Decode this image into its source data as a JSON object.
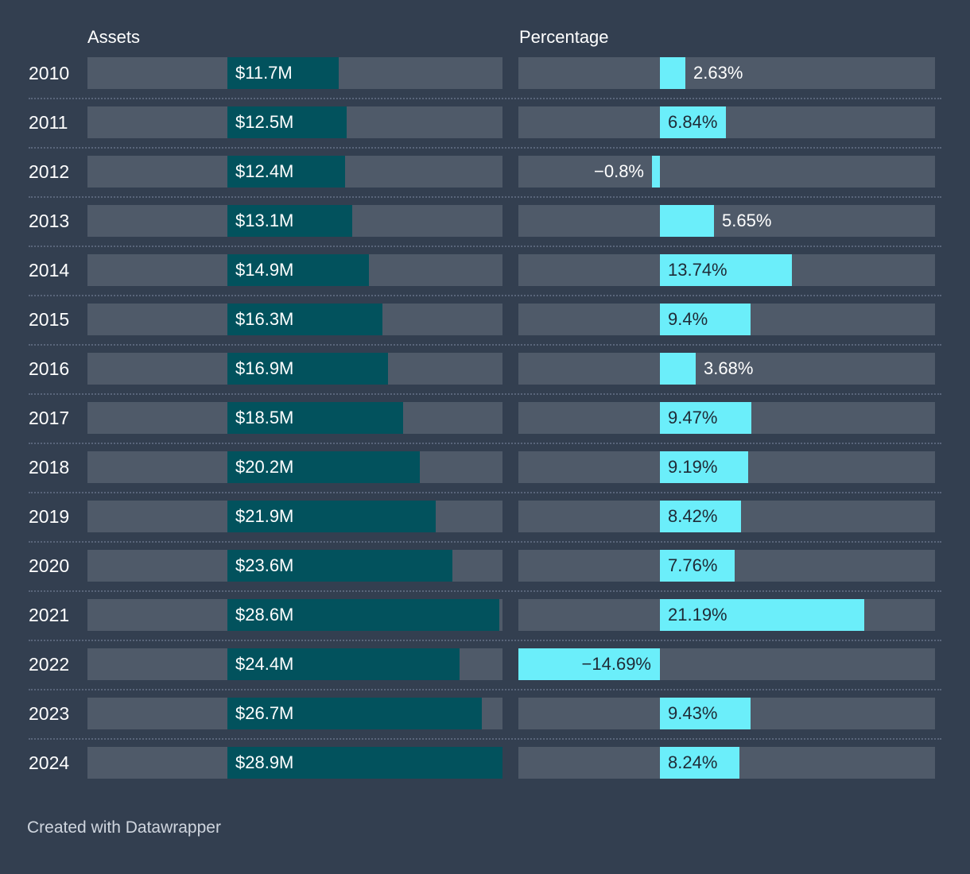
{
  "chart_data": {
    "type": "bar",
    "title": "",
    "columns": [
      "Assets",
      "Percentage"
    ],
    "categories": [
      "2010",
      "2011",
      "2012",
      "2013",
      "2014",
      "2015",
      "2016",
      "2017",
      "2018",
      "2019",
      "2020",
      "2021",
      "2022",
      "2023",
      "2024"
    ],
    "series": [
      {
        "name": "Assets",
        "unit": "$M",
        "values": [
          11.7,
          12.5,
          12.4,
          13.1,
          14.9,
          16.3,
          16.9,
          18.5,
          20.2,
          21.9,
          23.6,
          28.6,
          24.4,
          26.7,
          28.9
        ],
        "labels": [
          "$11.7M",
          "$12.5M",
          "$12.4M",
          "$13.1M",
          "$14.9M",
          "$16.3M",
          "$16.9M",
          "$18.5M",
          "$20.2M",
          "$21.9M",
          "$23.6M",
          "$28.6M",
          "$24.4M",
          "$26.7M",
          "$28.9M"
        ],
        "axis_range": [
          0,
          28.9
        ]
      },
      {
        "name": "Percentage",
        "unit": "%",
        "values": [
          2.63,
          6.84,
          -0.8,
          5.65,
          13.74,
          9.4,
          3.68,
          9.47,
          9.19,
          8.42,
          7.76,
          21.19,
          -14.69,
          9.43,
          8.24
        ],
        "labels": [
          "2.63%",
          "6.84%",
          "−0.8%",
          "5.65%",
          "13.74%",
          "9.4%",
          "3.68%",
          "9.47%",
          "9.19%",
          "8.42%",
          "7.76%",
          "21.19%",
          "−14.69%",
          "9.43%",
          "8.24%"
        ],
        "axis_range": [
          -14.69,
          28.5
        ]
      }
    ]
  },
  "colors": {
    "background": "#333f50",
    "track": "#4f5a69",
    "assets_bar": "#02525d",
    "percentage_bar": "#6beefa"
  },
  "footer": {
    "credit": "Created with Datawrapper"
  }
}
